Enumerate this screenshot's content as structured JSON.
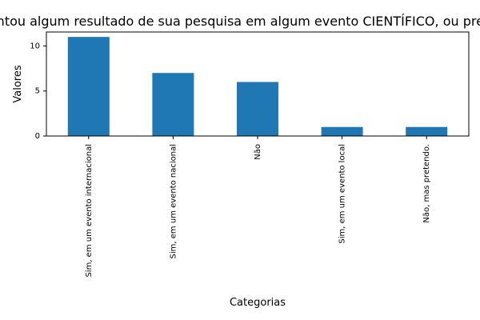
{
  "chart_data": {
    "type": "bar",
    "title": "Apresentou algum resultado de sua pesquisa em algum evento CIENTÍFICO, ou pretende?",
    "xlabel": "Categorias",
    "ylabel": "Valores",
    "categories": [
      "Sim, em um evento internacional",
      "Sim, em um evento nacional",
      "Não",
      "Sim, em um evento local",
      "Não, mas pretendo."
    ],
    "values": [
      11,
      7,
      6,
      1,
      1
    ],
    "ylim": [
      0,
      11.55
    ],
    "yticks": [
      0,
      5,
      10
    ],
    "grid": false,
    "legend": "none",
    "bar_color": "#1f77b4",
    "axis_color": "#000000"
  }
}
